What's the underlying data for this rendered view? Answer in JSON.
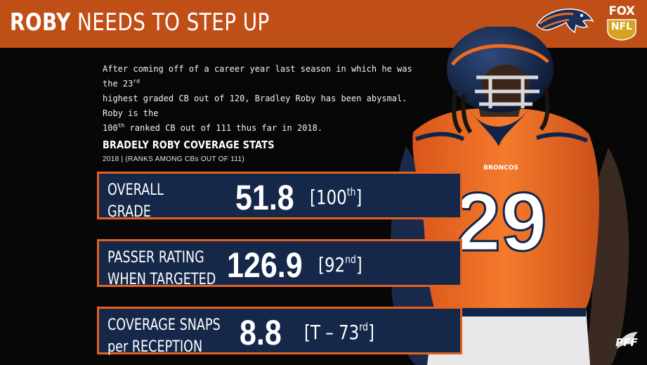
{
  "header": {
    "title_bold": "ROBY",
    "title_rest": " NEEDS TO STEP UP"
  },
  "logos": {
    "fox": "FOX",
    "nfl": "NFL",
    "pff": "PFF",
    "team_icon": "broncos-horse-icon"
  },
  "intro": {
    "line1_a": "After coming off of a career year last season in which he was the 23",
    "line1_sup": "rd",
    "line2": "highest graded CB out of 120, Bradley Roby has been abysmal. Roby is the",
    "line3_a": "100",
    "line3_sup": "th",
    "line3_b": " ranked CB out of 111 thus far in 2018."
  },
  "section": {
    "title": "BRADELY ROBY COVERAGE STATS",
    "subtitle": "2018 | (RANKS AMONG CBs OUT OF 111)"
  },
  "stats": [
    {
      "label_line1": "OVERALL",
      "label_line2": "GRADE",
      "value": "51.8",
      "rank_a": "[100",
      "rank_sup": "th",
      "rank_b": "]"
    },
    {
      "label_line1": "PASSER RATING",
      "label_line2": "WHEN TARGETED",
      "value": "126.9",
      "rank_a": "[92",
      "rank_sup": "nd",
      "rank_b": "]"
    },
    {
      "label_line1": "COVERAGE SNAPS",
      "label_line2": "per RECEPTION",
      "value": "8.8",
      "rank_a": "[T – 73",
      "rank_sup": "rd",
      "rank_b": "]"
    }
  ],
  "player": {
    "jersey_number": "29",
    "jersey_text": "BRONCOS"
  },
  "colors": {
    "header": "#c04e17",
    "box_fill": "#15284a",
    "box_border": "#e3621f",
    "jersey": "#f26b1d",
    "navy": "#0f2346"
  }
}
